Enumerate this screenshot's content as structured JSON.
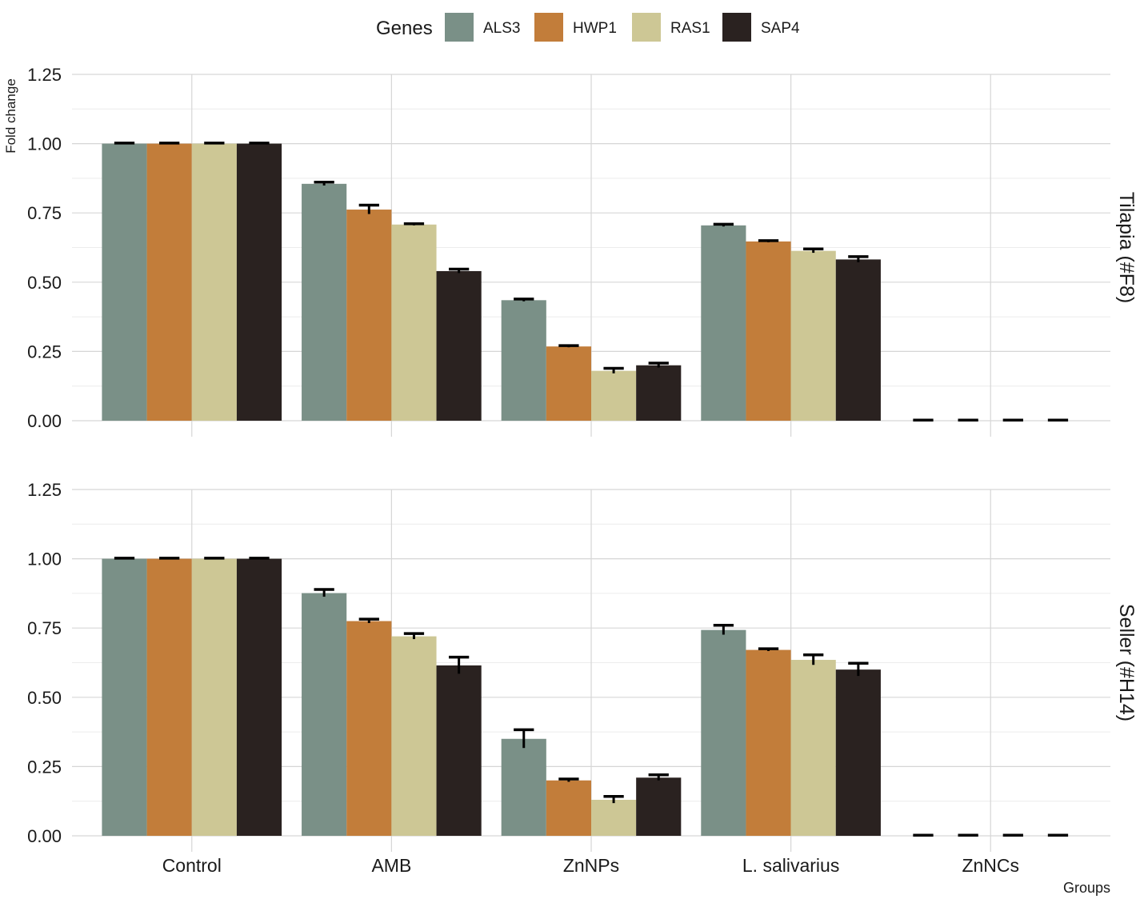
{
  "chart_data": {
    "type": "bar",
    "categories": [
      "Control",
      "AMB",
      "ZnNPs",
      "L. salivarius",
      "ZnNCs"
    ],
    "xlabel": "Groups",
    "ylabel": "Fold change",
    "ylim": [
      0,
      1.25
    ],
    "y_ticks": [
      0,
      0.25,
      0.5,
      0.75,
      1.0,
      1.25
    ],
    "y_tick_labels": [
      "0.00",
      "0.25",
      "0.50",
      "0.75",
      "1.00",
      "1.25"
    ],
    "legend": {
      "title": "Genes",
      "position": "top",
      "entries": [
        "ALS3",
        "HWP1",
        "RAS1",
        "SAP4"
      ]
    },
    "colors": {
      "ALS3": "#7a9087",
      "HWP1": "#c27d3a",
      "RAS1": "#cdc795",
      "SAP4": "#2a2220",
      "grid_major": "#d6d6d6",
      "grid_minor": "#ececec",
      "error_bar": "#000000",
      "text": "#1a1a1a"
    },
    "panels": [
      {
        "label": "Tilapia (#F8)",
        "series": [
          {
            "name": "ALS3",
            "values": [
              1.0,
              0.855,
              0.435,
              0.705,
              0.0
            ],
            "errors": [
              0.002,
              0.006,
              0.004,
              0.004,
              0.002
            ]
          },
          {
            "name": "HWP1",
            "values": [
              1.0,
              0.762,
              0.268,
              0.647,
              0.0
            ],
            "errors": [
              0.002,
              0.016,
              0.003,
              0.003,
              0.002
            ]
          },
          {
            "name": "RAS1",
            "values": [
              1.0,
              0.708,
              0.18,
              0.613,
              0.0
            ],
            "errors": [
              0.002,
              0.003,
              0.009,
              0.007,
              0.002
            ]
          },
          {
            "name": "SAP4",
            "values": [
              1.0,
              0.54,
              0.2,
              0.582,
              0.0
            ],
            "errors": [
              0.002,
              0.007,
              0.008,
              0.01,
              0.002
            ]
          }
        ]
      },
      {
        "label": "Seller (#H14)",
        "series": [
          {
            "name": "ALS3",
            "values": [
              1.0,
              0.876,
              0.35,
              0.743,
              0.0
            ],
            "errors": [
              0.002,
              0.013,
              0.033,
              0.017,
              0.002
            ]
          },
          {
            "name": "HWP1",
            "values": [
              1.0,
              0.775,
              0.2,
              0.671,
              0.0
            ],
            "errors": [
              0.002,
              0.007,
              0.005,
              0.004,
              0.002
            ]
          },
          {
            "name": "RAS1",
            "values": [
              1.0,
              0.72,
              0.13,
              0.635,
              0.0
            ],
            "errors": [
              0.002,
              0.01,
              0.012,
              0.018,
              0.002
            ]
          },
          {
            "name": "SAP4",
            "values": [
              1.0,
              0.615,
              0.21,
              0.6,
              0.0
            ],
            "errors": [
              0.002,
              0.03,
              0.01,
              0.023,
              0.002
            ]
          }
        ]
      }
    ]
  }
}
